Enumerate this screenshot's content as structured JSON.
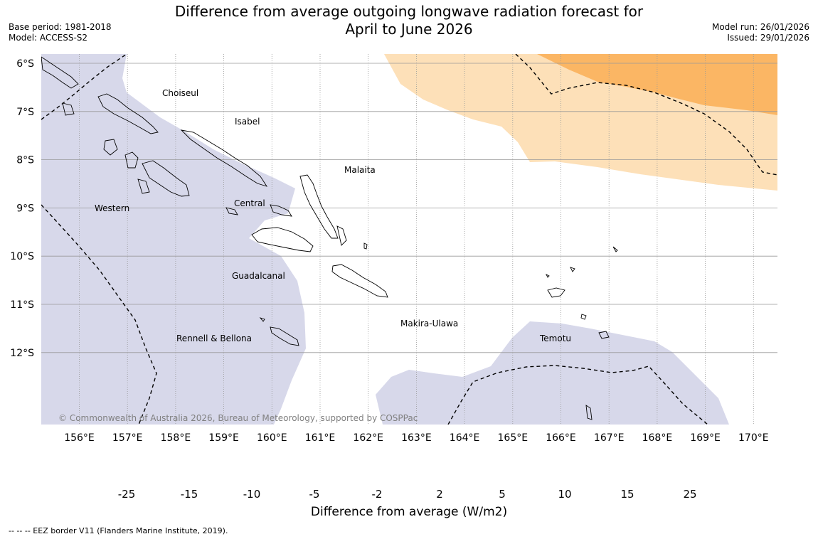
{
  "title": {
    "line1": "Difference from average outgoing longwave radiation forecast for",
    "line2": "April to June 2026"
  },
  "meta": {
    "base_period": "Base period: 1981-2018",
    "model": "Model: ACCESS-S2",
    "model_run": "Model run: 26/01/2026",
    "issued": "Issued: 29/01/2026"
  },
  "map": {
    "lat_labels": [
      "6°S",
      "7°S",
      "8°S",
      "9°S",
      "10°S",
      "11°S",
      "12°S"
    ],
    "lon_labels": [
      "156°E",
      "157°E",
      "158°E",
      "159°E",
      "160°E",
      "161°E",
      "162°E",
      "163°E",
      "164°E",
      "165°E",
      "166°E",
      "167°E",
      "168°E",
      "169°E",
      "170°E"
    ],
    "provinces": [
      "Choiseul",
      "Isabel",
      "Malaita",
      "Western",
      "Central",
      "Guadalcanal",
      "Makira-Ulawa",
      "Temotu",
      "Rennell & Bellona"
    ],
    "copyright": "© Commonwealth of Australia 2026, Bureau of Meteorology, supported by COSPPac"
  },
  "colorbar": {
    "tick_labels": [
      "-25",
      "-15",
      "-10",
      "-5",
      "-2",
      "2",
      "5",
      "10",
      "15",
      "25"
    ],
    "colors": [
      "#57268f",
      "#8272ad",
      "#b0a6d2",
      "#d7d8ea",
      "#ffffff",
      "#fde0b8",
      "#fbb664",
      "#e0861c",
      "#b35806"
    ],
    "low_extend_color": "#2d004b",
    "high_extend_color": "#7f3b08",
    "title": "Difference from average (W/m2)"
  },
  "footer": "--  --  -- EEZ border V11 (Flanders Marine Institute, 2019)."
}
